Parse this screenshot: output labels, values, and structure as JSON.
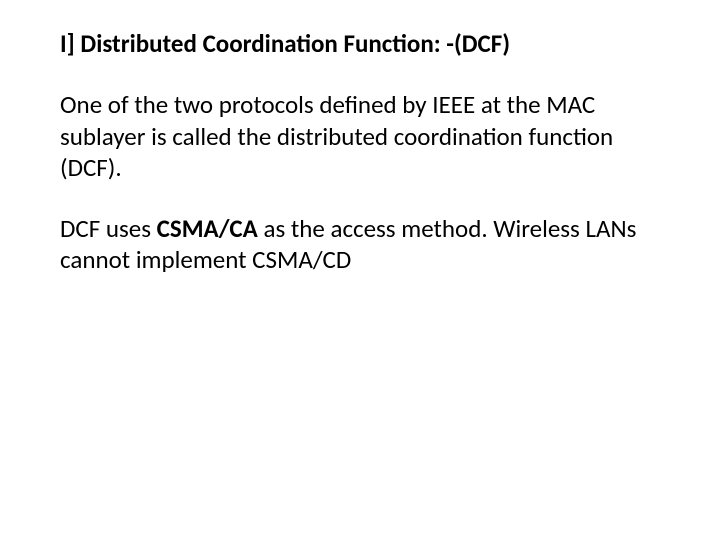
{
  "slide": {
    "heading": "I] Distributed Coordination Function: -(DCF)",
    "para1": "One of the two protocols defined by IEEE at the MAC sublayer is called the distributed coordination function (DCF).",
    "para2_pre": "DCF uses ",
    "para2_bold": "CSMA/CA",
    "para2_post": " as the access method. Wireless LANs cannot implement CSMA/CD",
    "text_color": "#000000",
    "background_color": "#ffffff",
    "heading_fontsize": 25,
    "body_fontsize": 25,
    "font_family": "Calibri",
    "slide_width": 720,
    "slide_height": 540
  }
}
